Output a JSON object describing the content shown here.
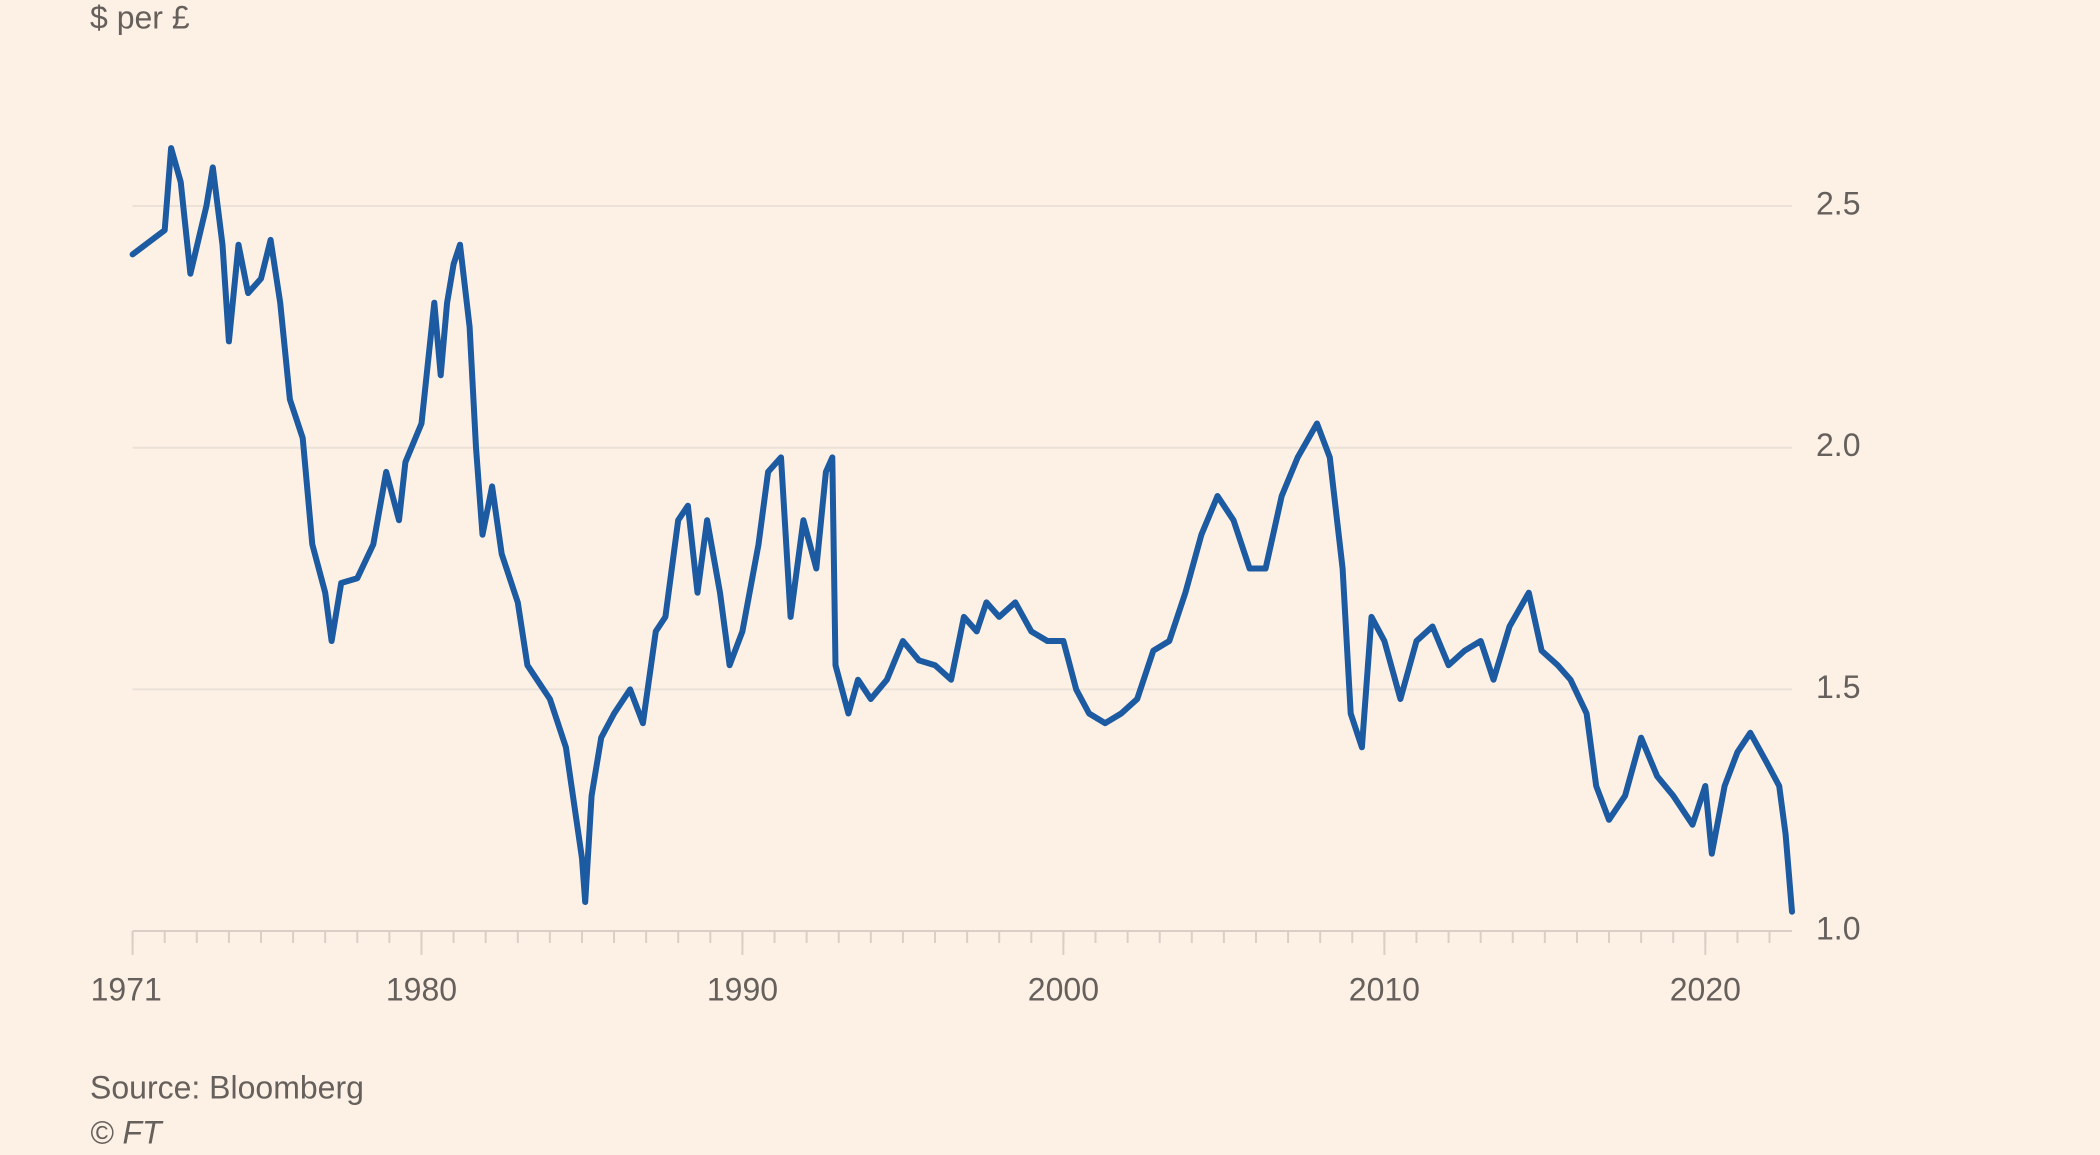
{
  "chart_data": {
    "type": "line",
    "subtitle": "$ per £",
    "source": "Source: Bloomberg",
    "copyright": "© FT",
    "color": "#1c5aa2",
    "grid": true,
    "xlim": [
      1971,
      2022.7
    ],
    "ylim": [
      1,
      2.7
    ],
    "xticks": [
      1971,
      1980,
      1990,
      2000,
      2010,
      2020
    ],
    "yticks": [
      {
        "value": 1,
        "label": "1.0"
      },
      1.5,
      {
        "value": 2,
        "label": "2.0"
      },
      2.5
    ],
    "x": [
      1971.0,
      1972.0,
      1972.2,
      1972.5,
      1972.8,
      1973.3,
      1973.5,
      1973.8,
      1974.0,
      1974.3,
      1974.6,
      1975.0,
      1975.3,
      1975.6,
      1975.9,
      1976.3,
      1976.6,
      1977.0,
      1977.2,
      1977.5,
      1978.0,
      1978.5,
      1978.9,
      1979.3,
      1979.5,
      1980.0,
      1980.4,
      1980.6,
      1980.8,
      1981.0,
      1981.2,
      1981.5,
      1981.7,
      1981.9,
      1982.2,
      1982.5,
      1983.0,
      1983.3,
      1983.6,
      1984.0,
      1984.5,
      1985.0,
      1985.1,
      1985.3,
      1985.6,
      1986.0,
      1986.5,
      1986.9,
      1987.3,
      1987.6,
      1988.0,
      1988.3,
      1988.6,
      1988.9,
      1989.3,
      1989.6,
      1990.0,
      1990.5,
      1990.8,
      1991.2,
      1991.5,
      1991.9,
      1992.3,
      1992.6,
      1992.8,
      1992.9,
      1993.3,
      1993.6,
      1994.0,
      1994.5,
      1995.0,
      1995.5,
      1996.0,
      1996.5,
      1996.9,
      1997.3,
      1997.6,
      1998.0,
      1998.5,
      1999.0,
      1999.5,
      2000.0,
      2000.4,
      2000.8,
      2001.3,
      2001.8,
      2002.3,
      2002.8,
      2003.3,
      2003.8,
      2004.3,
      2004.8,
      2005.3,
      2005.8,
      2006.3,
      2006.8,
      2007.3,
      2007.9,
      2008.3,
      2008.7,
      2008.95,
      2009.3,
      2009.6,
      2010.0,
      2010.5,
      2011.0,
      2011.5,
      2012.0,
      2012.5,
      2013.0,
      2013.4,
      2013.9,
      2014.5,
      2014.9,
      2015.4,
      2015.8,
      2016.3,
      2016.6,
      2017.0,
      2017.5,
      2018.0,
      2018.5,
      2019.0,
      2019.6,
      2020.0,
      2020.2,
      2020.6,
      2021.0,
      2021.4,
      2021.9,
      2022.3,
      2022.5,
      2022.7
    ],
    "values": [
      2.4,
      2.45,
      2.62,
      2.55,
      2.36,
      2.5,
      2.58,
      2.42,
      2.22,
      2.42,
      2.32,
      2.35,
      2.43,
      2.3,
      2.1,
      2.02,
      1.8,
      1.7,
      1.6,
      1.72,
      1.73,
      1.8,
      1.95,
      1.85,
      1.97,
      2.05,
      2.3,
      2.15,
      2.3,
      2.38,
      2.42,
      2.25,
      2.0,
      1.82,
      1.92,
      1.78,
      1.68,
      1.55,
      1.52,
      1.48,
      1.38,
      1.15,
      1.06,
      1.28,
      1.4,
      1.45,
      1.5,
      1.43,
      1.62,
      1.65,
      1.85,
      1.88,
      1.7,
      1.85,
      1.7,
      1.55,
      1.62,
      1.8,
      1.95,
      1.98,
      1.65,
      1.85,
      1.75,
      1.95,
      1.98,
      1.55,
      1.45,
      1.52,
      1.48,
      1.52,
      1.6,
      1.56,
      1.55,
      1.52,
      1.65,
      1.62,
      1.68,
      1.65,
      1.68,
      1.62,
      1.6,
      1.6,
      1.5,
      1.45,
      1.43,
      1.45,
      1.48,
      1.58,
      1.6,
      1.7,
      1.82,
      1.9,
      1.85,
      1.75,
      1.75,
      1.9,
      1.98,
      2.05,
      1.98,
      1.75,
      1.45,
      1.38,
      1.65,
      1.6,
      1.48,
      1.6,
      1.63,
      1.55,
      1.58,
      1.6,
      1.52,
      1.63,
      1.7,
      1.58,
      1.55,
      1.52,
      1.45,
      1.3,
      1.23,
      1.28,
      1.4,
      1.32,
      1.28,
      1.22,
      1.3,
      1.16,
      1.3,
      1.37,
      1.41,
      1.35,
      1.3,
      1.2,
      1.04
    ]
  }
}
